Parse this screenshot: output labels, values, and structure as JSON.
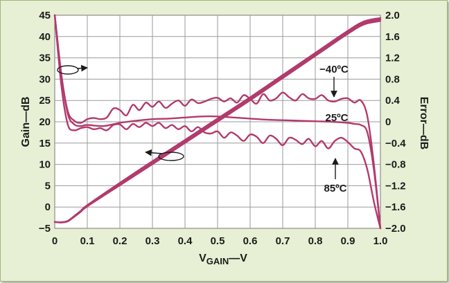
{
  "chart_data": {
    "type": "line",
    "xlabel": "VGAIN—V",
    "xlabel_main": "V",
    "xlabel_sub": "GAIN",
    "xlabel_tail": "—V",
    "ylabel": "Gain—dB",
    "y2label": "Error—dB",
    "xlim": [
      0,
      1.0
    ],
    "ylim": [
      -5,
      45
    ],
    "y2lim": [
      -2.0,
      2.0
    ],
    "x_ticks": [
      "0",
      "0.1",
      "0.2",
      "0.3",
      "0.4",
      "0.5",
      "0.6",
      "0.7",
      "0.8",
      "0.9",
      "1.0"
    ],
    "y_ticks": [
      "−5",
      "0",
      "5",
      "10",
      "15",
      "20",
      "25",
      "30",
      "35",
      "40",
      "45"
    ],
    "y2_ticks": [
      "−2.0",
      "−1.6",
      "−1.2",
      "−0.8",
      "−0.4",
      "0",
      "0.4",
      "0.8",
      "1.2",
      "1.6",
      "2.0"
    ],
    "grid": true,
    "series": [
      {
        "name": "−40ºC",
        "axis": "y2",
        "x": [
          0.0,
          0.02,
          0.04,
          0.06,
          0.08,
          0.1,
          0.12,
          0.14,
          0.16,
          0.18,
          0.2,
          0.22,
          0.24,
          0.26,
          0.28,
          0.3,
          0.32,
          0.34,
          0.36,
          0.38,
          0.4,
          0.42,
          0.44,
          0.46,
          0.48,
          0.5,
          0.52,
          0.54,
          0.56,
          0.58,
          0.6,
          0.62,
          0.64,
          0.66,
          0.68,
          0.7,
          0.72,
          0.74,
          0.76,
          0.78,
          0.8,
          0.82,
          0.84,
          0.86,
          0.88,
          0.9,
          0.92,
          0.94,
          0.96,
          0.98,
          1.0
        ],
        "y": [
          2.0,
          0.9,
          0.2,
          0.02,
          -0.02,
          0.05,
          0.07,
          0.05,
          0.08,
          0.25,
          0.22,
          0.12,
          0.32,
          0.22,
          0.36,
          0.28,
          0.38,
          0.26,
          0.34,
          0.4,
          0.3,
          0.42,
          0.35,
          0.38,
          0.43,
          0.45,
          0.38,
          0.44,
          0.36,
          0.5,
          0.43,
          0.34,
          0.52,
          0.4,
          0.44,
          0.55,
          0.46,
          0.4,
          0.52,
          0.44,
          0.43,
          0.5,
          0.4,
          0.38,
          0.43,
          0.44,
          0.36,
          0.4,
          0.1,
          -0.8,
          -2.0
        ]
      },
      {
        "name": "25ºC",
        "axis": "y2",
        "x": [
          0.0,
          0.02,
          0.04,
          0.06,
          0.08,
          0.1,
          0.15,
          0.2,
          0.25,
          0.3,
          0.35,
          0.4,
          0.45,
          0.5,
          0.55,
          0.6,
          0.65,
          0.7,
          0.75,
          0.8,
          0.85,
          0.9,
          0.92,
          0.94,
          0.96,
          0.98,
          1.0
        ],
        "y": [
          2.0,
          0.9,
          0.15,
          -0.05,
          -0.08,
          -0.06,
          -0.08,
          -0.02,
          0.02,
          0.05,
          0.06,
          0.08,
          0.1,
          0.1,
          0.08,
          0.06,
          0.04,
          0.03,
          0.02,
          0.01,
          0.0,
          -0.02,
          -0.04,
          -0.06,
          -0.2,
          -0.9,
          -2.0
        ]
      },
      {
        "name": "85ºC",
        "axis": "y2",
        "x": [
          0.0,
          0.02,
          0.04,
          0.06,
          0.08,
          0.1,
          0.12,
          0.14,
          0.16,
          0.18,
          0.2,
          0.22,
          0.24,
          0.26,
          0.28,
          0.3,
          0.32,
          0.34,
          0.36,
          0.38,
          0.4,
          0.42,
          0.44,
          0.46,
          0.48,
          0.5,
          0.52,
          0.54,
          0.56,
          0.58,
          0.6,
          0.62,
          0.64,
          0.66,
          0.68,
          0.7,
          0.72,
          0.74,
          0.76,
          0.78,
          0.8,
          0.82,
          0.84,
          0.86,
          0.88,
          0.9,
          0.92,
          0.94,
          0.96,
          0.98,
          1.0
        ],
        "y": [
          2.0,
          0.7,
          -0.05,
          -0.16,
          -0.12,
          -0.1,
          -0.14,
          -0.12,
          -0.16,
          -0.06,
          -0.05,
          -0.14,
          -0.04,
          -0.1,
          -0.02,
          -0.08,
          -0.02,
          -0.12,
          -0.06,
          -0.14,
          -0.08,
          -0.18,
          -0.1,
          -0.2,
          -0.22,
          -0.18,
          -0.3,
          -0.2,
          -0.26,
          -0.36,
          -0.24,
          -0.28,
          -0.4,
          -0.26,
          -0.32,
          -0.44,
          -0.3,
          -0.34,
          -0.42,
          -0.32,
          -0.46,
          -0.36,
          -0.5,
          -0.36,
          -0.3,
          -0.38,
          -0.5,
          -0.56,
          -0.9,
          -1.5,
          -2.0
        ]
      },
      {
        "name": "Gain",
        "axis": "y",
        "x": [
          0.0,
          0.02,
          0.04,
          0.06,
          0.08,
          0.1,
          0.2,
          0.3,
          0.4,
          0.5,
          0.6,
          0.7,
          0.8,
          0.9,
          0.95,
          1.0
        ],
        "y": [
          -3.5,
          -3.6,
          -3.3,
          -2.2,
          -1.0,
          0.3,
          5.4,
          10.4,
          15.4,
          20.4,
          25.4,
          30.6,
          35.8,
          41.0,
          43.2,
          44.0
        ]
      }
    ],
    "annotations": [
      "−40ºC",
      "25ºC",
      "85ºC"
    ]
  }
}
